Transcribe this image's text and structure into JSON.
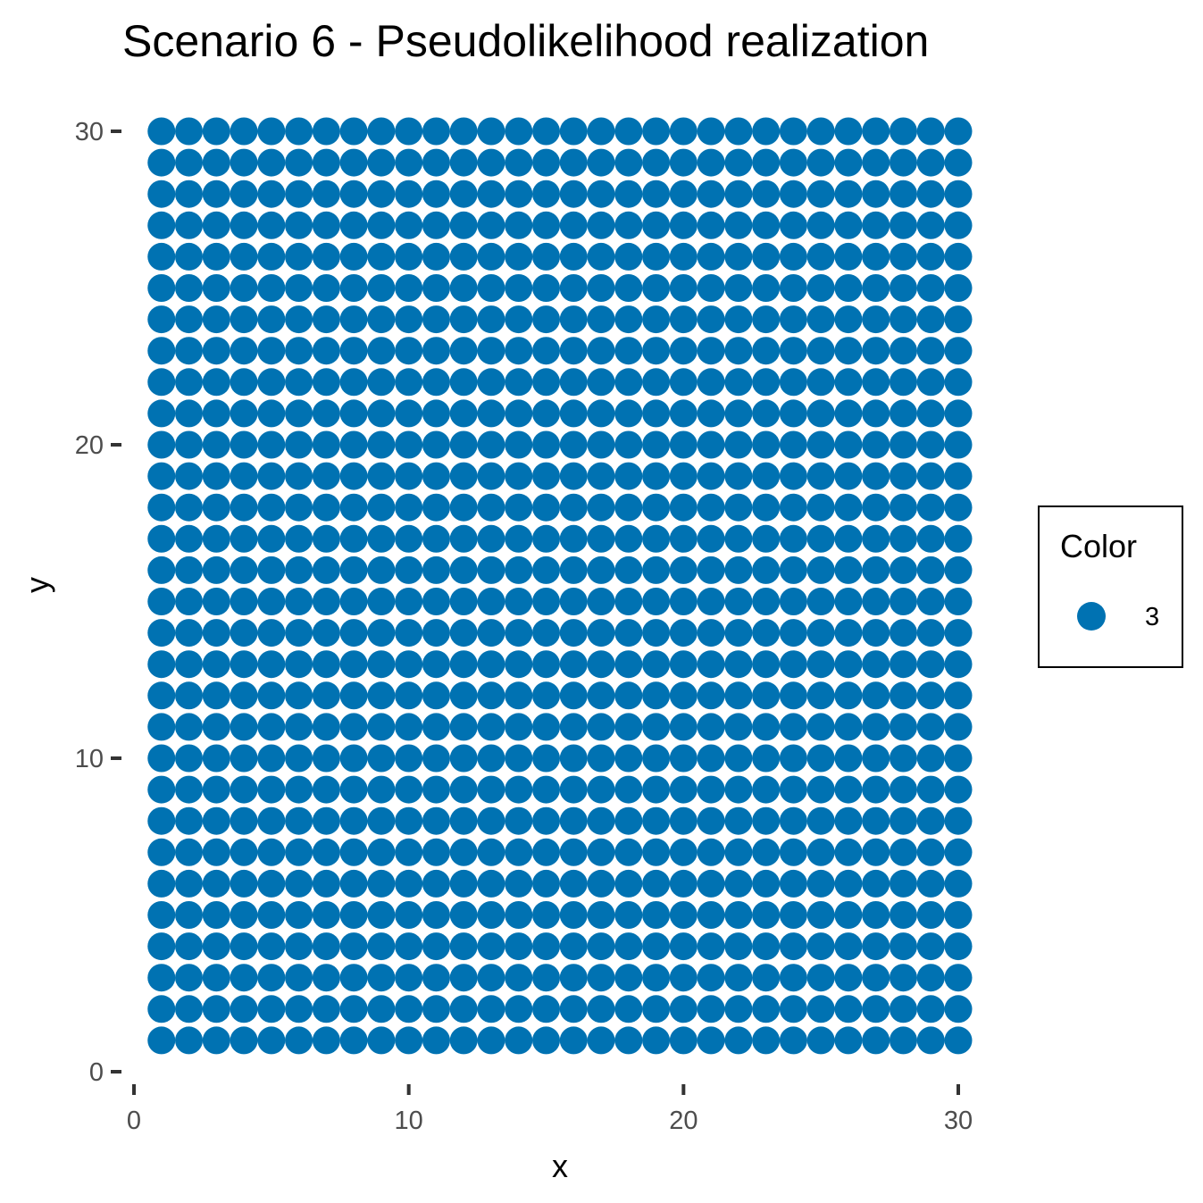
{
  "chart_data": {
    "type": "scatter",
    "title": "Scenario 6 - Pseudolikelihood realization",
    "xlabel": "x",
    "ylabel": "y",
    "xlim": [
      0,
      30
    ],
    "ylim": [
      0,
      30
    ],
    "x_ticks": [
      0,
      10,
      20,
      30
    ],
    "y_ticks": [
      0,
      10,
      20,
      30
    ],
    "x_tick_labels": [
      "0",
      "10",
      "20",
      "30"
    ],
    "y_tick_labels": [
      "0",
      "10",
      "20",
      "30"
    ],
    "grid": false,
    "legend": {
      "title": "Color",
      "placement": "right",
      "entries": [
        {
          "label": "3",
          "color": "#0072B2"
        }
      ]
    },
    "series": [
      {
        "name": "3",
        "color": "#0072B2",
        "grid_x": {
          "from": 1,
          "to": 30,
          "step": 1
        },
        "grid_y": {
          "from": 1,
          "to": 30,
          "step": 1
        },
        "point_count": 900
      }
    ]
  }
}
